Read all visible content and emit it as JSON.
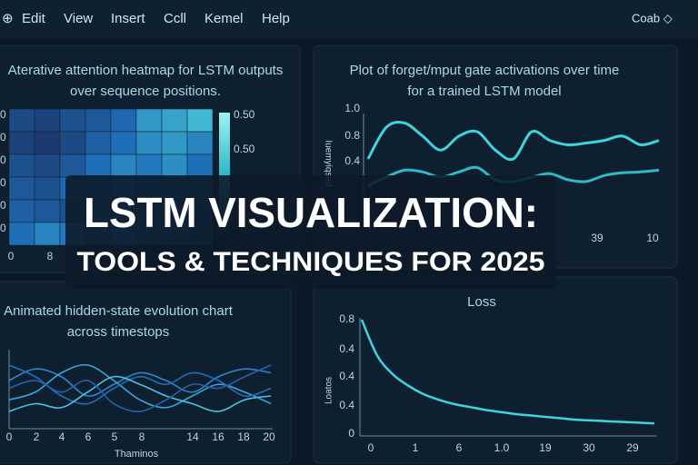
{
  "menu": {
    "items": [
      "Edit",
      "View",
      "Insert",
      "Ccll",
      "Kemel",
      "Help"
    ],
    "right": "Coab ◇"
  },
  "heatmap_panel": {
    "title": [
      "Aterative attention heatmap for LSTM outputs",
      "over sequence positions."
    ],
    "colorbar_ticks": [
      "0.50",
      "0.50"
    ],
    "x_ticks": [
      "0",
      "8"
    ],
    "y_ticks": [
      "0",
      "0",
      "0",
      "0",
      "0",
      "0"
    ],
    "matrix": [
      [
        0.25,
        0.2,
        0.3,
        0.35,
        0.45,
        0.7,
        0.75,
        0.85
      ],
      [
        0.2,
        0.15,
        0.25,
        0.4,
        0.5,
        0.65,
        0.7,
        0.6
      ],
      [
        0.3,
        0.25,
        0.35,
        0.5,
        0.6,
        0.55,
        0.65,
        0.5
      ],
      [
        0.35,
        0.3,
        0.45,
        0.4,
        0.5,
        0.45,
        0.4,
        0.35
      ],
      [
        0.4,
        0.35,
        0.3,
        0.45,
        0.4,
        0.35,
        0.3,
        0.3
      ],
      [
        0.5,
        0.6,
        0.55,
        0.45,
        0.5,
        0.4,
        0.35,
        0.3
      ]
    ]
  },
  "gate_panel": {
    "title": [
      "Plot of forget/mput gate activations over time",
      "for a trained LSTM model"
    ],
    "y_label": "Iuemyiqsed",
    "y_ticks": [
      "1.0",
      "0.8",
      "0.4"
    ],
    "x_ticks": [
      "39",
      "10"
    ],
    "ylim": [
      0.2,
      1.0
    ],
    "series": [
      {
        "color": "#3fd3db",
        "values": [
          0.43,
          0.79,
          0.84,
          0.69,
          0.53,
          0.69,
          0.74,
          0.53,
          0.43,
          0.74,
          0.64,
          0.59,
          0.61,
          0.64,
          0.69,
          0.59,
          0.64
        ]
      },
      {
        "color": "#2fb8c8",
        "values": [
          0.12,
          0.22,
          0.3,
          0.28,
          0.22,
          0.28,
          0.33,
          0.19,
          0.17,
          0.22,
          0.26,
          0.19,
          0.17,
          0.24,
          0.27,
          0.28,
          0.3
        ]
      }
    ]
  },
  "overlay": {
    "title": "LSTM VISUALIZATION:",
    "subtitle": "TOOLS & TECHNIQUES FOR 2025"
  },
  "hidden_panel": {
    "title": [
      "Animated hidden-state evolution chart",
      "across timestops"
    ],
    "x_ticks": [
      "0",
      "2",
      "4",
      "6",
      "5",
      "8",
      "14",
      "16",
      "18",
      "20"
    ],
    "x_label": "Thaminos",
    "ylim": [
      -1,
      1
    ],
    "series": [
      {
        "color": "#2f86d0",
        "values": [
          0.2,
          0.5,
          0.3,
          -0.2,
          0.1,
          0.4,
          0.2,
          -0.1,
          0.3,
          0.5,
          0.4
        ]
      },
      {
        "color": "#3aa6d8",
        "values": [
          -0.3,
          -0.1,
          0.4,
          0.6,
          0.2,
          -0.3,
          -0.5,
          -0.2,
          0.1,
          -0.1,
          -0.4
        ]
      },
      {
        "color": "#1f6fb8",
        "values": [
          0.6,
          0.3,
          -0.2,
          -0.4,
          0.0,
          0.3,
          0.1,
          0.4,
          0.2,
          -0.2,
          0.0
        ]
      },
      {
        "color": "#4cc0e0",
        "values": [
          -0.6,
          -0.4,
          -0.5,
          -0.1,
          0.3,
          0.1,
          -0.2,
          -0.4,
          -0.6,
          -0.3,
          -0.2
        ]
      },
      {
        "color": "#2a5fa8",
        "values": [
          0.0,
          0.2,
          -0.1,
          0.2,
          -0.4,
          -0.6,
          -0.3,
          0.1,
          0.0,
          0.3,
          0.6
        ]
      }
    ]
  },
  "loss_panel": {
    "title": "Loss",
    "y_label": "Loatos",
    "y_ticks": [
      "0.8",
      "0.4",
      "0.4",
      "0.4",
      "0"
    ],
    "x_ticks": [
      "0",
      "1",
      "6",
      "1.0",
      "19",
      "30",
      "29"
    ],
    "ylim": [
      0,
      0.8
    ],
    "color": "#3fd3db",
    "values": [
      0.8,
      0.55,
      0.42,
      0.34,
      0.28,
      0.24,
      0.21,
      0.19,
      0.17,
      0.155,
      0.14,
      0.13,
      0.12,
      0.11,
      0.1,
      0.095,
      0.09,
      0.085,
      0.08,
      0.075
    ]
  }
}
